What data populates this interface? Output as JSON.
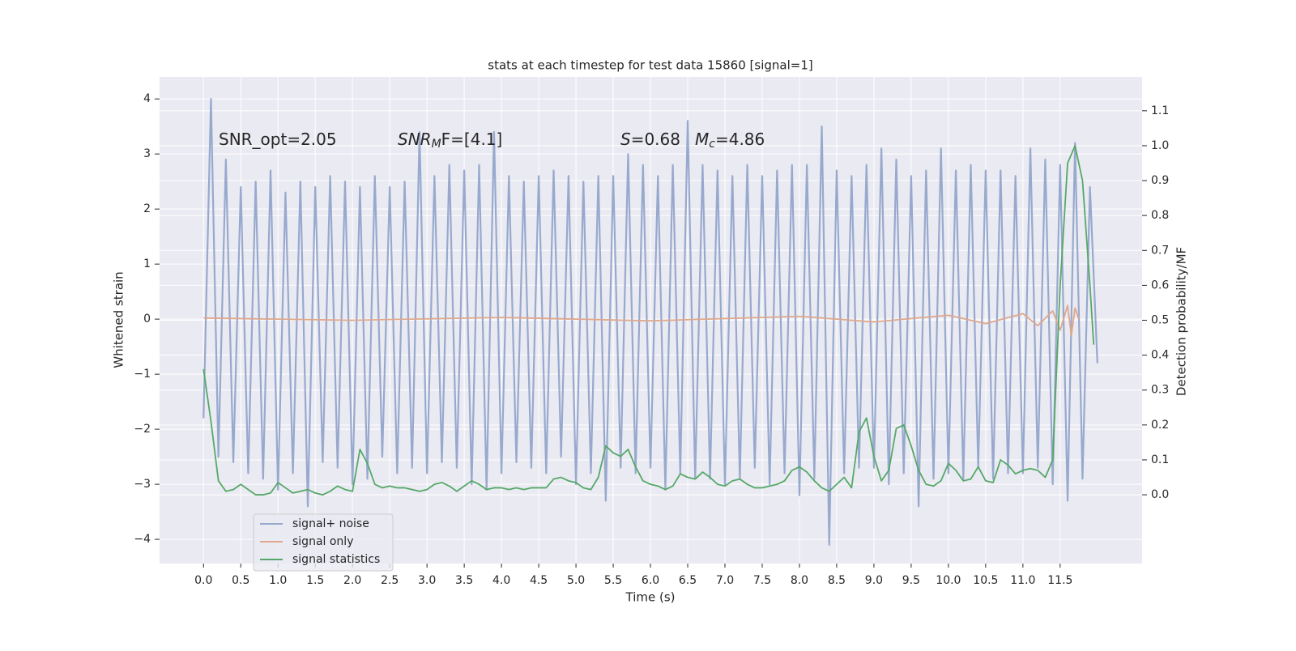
{
  "chart_data": {
    "type": "line",
    "title": "stats at each timestep for test data 15860 [signal=1]",
    "xlabel": "Time (s)",
    "ylabel": "Whitened strain",
    "y2label": "Detection probability/MF",
    "annotations": [
      [
        {
          "text": "SNR_opt=2.05"
        }
      ],
      [
        {
          "text": "SNR",
          "italic": true
        },
        {
          "text": "M",
          "italic": true,
          "sub": true
        },
        {
          "text": "F=[4.1]"
        }
      ],
      [
        {
          "text": "S",
          "italic": true
        },
        {
          "text": "=0.68"
        }
      ],
      [
        {
          "text": "M",
          "italic": true
        },
        {
          "text": "c",
          "italic": true,
          "sub": true
        },
        {
          "text": "=4.86"
        }
      ]
    ],
    "xlim": [
      -0.59,
      12.6
    ],
    "ylim": [
      -4.44,
      4.4
    ],
    "y2lim": [
      -0.197,
      1.197
    ],
    "xticks": [
      {
        "value": 0,
        "label": "0.0"
      },
      {
        "value": 0.5,
        "label": "0.5"
      },
      {
        "value": 1,
        "label": "1.0"
      },
      {
        "value": 1.5,
        "label": "1.5"
      },
      {
        "value": 2,
        "label": "2.0"
      },
      {
        "value": 2.5,
        "label": "2.5"
      },
      {
        "value": 3,
        "label": "3.0"
      },
      {
        "value": 3.5,
        "label": "3.5"
      },
      {
        "value": 4,
        "label": "4.0"
      },
      {
        "value": 4.5,
        "label": "4.5"
      },
      {
        "value": 5,
        "label": "5.0"
      },
      {
        "value": 5.5,
        "label": "5.5"
      },
      {
        "value": 6,
        "label": "6.0"
      },
      {
        "value": 6.5,
        "label": "6.5"
      },
      {
        "value": 7,
        "label": "7.0"
      },
      {
        "value": 7.5,
        "label": "7.5"
      },
      {
        "value": 8,
        "label": "8.0"
      },
      {
        "value": 8.5,
        "label": "8.5"
      },
      {
        "value": 9,
        "label": "9.0"
      },
      {
        "value": 9.5,
        "label": "9.5"
      },
      {
        "value": 10,
        "label": "10.0"
      },
      {
        "value": 10.5,
        "label": "10.5"
      },
      {
        "value": 11,
        "label": "11.0"
      },
      {
        "value": 11.5,
        "label": "11.5"
      }
    ],
    "yticks": [
      {
        "value": -4,
        "label": "−4"
      },
      {
        "value": -3,
        "label": "−3"
      },
      {
        "value": -2,
        "label": "−2"
      },
      {
        "value": -1,
        "label": "−1"
      },
      0,
      1,
      2,
      3,
      4
    ],
    "y2ticks": [
      {
        "value": 0,
        "label": "0.0"
      },
      {
        "value": 0.1,
        "label": "0.1"
      },
      {
        "value": 0.2,
        "label": "0.2"
      },
      {
        "value": 0.3,
        "label": "0.3"
      },
      {
        "value": 0.4,
        "label": "0.4"
      },
      {
        "value": 0.5,
        "label": "0.5"
      },
      {
        "value": 0.6,
        "label": "0.6"
      },
      {
        "value": 0.7,
        "label": "0.7"
      },
      {
        "value": 0.8,
        "label": "0.8"
      },
      {
        "value": 0.9,
        "label": "0.9"
      },
      {
        "value": 1,
        "label": "1.0"
      },
      {
        "value": 1.1,
        "label": "1.1"
      }
    ],
    "grid": true,
    "legend": "lower left",
    "series": [
      {
        "name": "signal+ noise",
        "color": "#98a9ce",
        "x": [
          0,
          0.1,
          0.2,
          0.3,
          0.4,
          0.5,
          0.6,
          0.7,
          0.8,
          0.9,
          1,
          1.1,
          1.2,
          1.3,
          1.4,
          1.5,
          1.6,
          1.7,
          1.8,
          1.9,
          2,
          2.1,
          2.2,
          2.3,
          2.4,
          2.5,
          2.6,
          2.7,
          2.8,
          2.9,
          3,
          3.1,
          3.2,
          3.3,
          3.4,
          3.5,
          3.6,
          3.7,
          3.8,
          3.9,
          4,
          4.1,
          4.2,
          4.3,
          4.4,
          4.5,
          4.6,
          4.7,
          4.8,
          4.9,
          5,
          5.1,
          5.2,
          5.3,
          5.4,
          5.5,
          5.6,
          5.7,
          5.8,
          5.9,
          6,
          6.1,
          6.2,
          6.3,
          6.4,
          6.5,
          6.6,
          6.7,
          6.8,
          6.9,
          7,
          7.1,
          7.2,
          7.3,
          7.4,
          7.5,
          7.6,
          7.7,
          7.8,
          7.9,
          8,
          8.1,
          8.2,
          8.3,
          8.4,
          8.5,
          8.6,
          8.7,
          8.8,
          8.9,
          9,
          9.1,
          9.2,
          9.3,
          9.4,
          9.5,
          9.6,
          9.7,
          9.8,
          9.9,
          10,
          10.1,
          10.2,
          10.3,
          10.4,
          10.5,
          10.6,
          10.7,
          10.8,
          10.9,
          11,
          11.1,
          11.2,
          11.3,
          11.4,
          11.5,
          11.6,
          11.7,
          11.8,
          11.9,
          12
        ],
        "values": [
          -1.8,
          4.0,
          -2.5,
          2.9,
          -2.6,
          2.4,
          -2.8,
          2.5,
          -2.9,
          2.7,
          -3.1,
          2.3,
          -2.8,
          2.5,
          -3.4,
          2.4,
          -2.6,
          2.6,
          -2.7,
          2.5,
          -3.0,
          2.4,
          -2.9,
          2.6,
          -2.5,
          2.4,
          -2.8,
          2.5,
          -2.7,
          3.4,
          -2.8,
          2.6,
          -2.6,
          2.8,
          -2.7,
          2.7,
          -3.0,
          2.8,
          -3.1,
          3.4,
          -2.8,
          2.6,
          -2.6,
          2.5,
          -2.7,
          2.6,
          -2.8,
          2.7,
          -2.5,
          2.6,
          -3.0,
          2.5,
          -2.8,
          2.6,
          -3.3,
          2.6,
          -2.7,
          3.0,
          -2.8,
          2.8,
          -2.7,
          2.6,
          -3.1,
          2.8,
          -2.8,
          3.6,
          -2.9,
          2.8,
          -2.9,
          2.7,
          -3.0,
          2.6,
          -2.9,
          2.8,
          -2.7,
          2.6,
          -3.0,
          2.7,
          -2.8,
          2.8,
          -3.2,
          2.8,
          -2.9,
          3.5,
          -4.1,
          2.7,
          -2.8,
          2.6,
          -2.7,
          2.8,
          -2.7,
          3.1,
          -3.0,
          2.9,
          -2.8,
          2.6,
          -3.4,
          2.7,
          -2.9,
          3.1,
          -2.8,
          2.7,
          -2.9,
          2.8,
          -2.7,
          2.7,
          -2.9,
          2.7,
          -2.8,
          2.6,
          -2.8,
          3.1,
          -2.7,
          2.9,
          -3.0,
          2.8,
          -3.3,
          3.2,
          -2.9,
          2.4,
          -0.8
        ]
      },
      {
        "name": "signal only",
        "color": "#dfa78c",
        "x": [
          0,
          2,
          4,
          6,
          8,
          9,
          10,
          10.5,
          11,
          11.2,
          11.4,
          11.5,
          11.6,
          11.65,
          11.7,
          11.75
        ],
        "values": [
          0.02,
          -0.02,
          0.03,
          -0.03,
          0.05,
          -0.05,
          0.07,
          -0.08,
          0.1,
          -0.12,
          0.15,
          -0.2,
          0.25,
          -0.3,
          0.2,
          0.0
        ]
      },
      {
        "name": "signal statistics",
        "color": "#55a868",
        "axis": "y2",
        "x": [
          0,
          0.1,
          0.2,
          0.3,
          0.4,
          0.5,
          0.6,
          0.7,
          0.8,
          0.9,
          1,
          1.1,
          1.2,
          1.3,
          1.4,
          1.5,
          1.6,
          1.7,
          1.8,
          1.9,
          2,
          2.1,
          2.2,
          2.3,
          2.4,
          2.5,
          2.6,
          2.7,
          2.8,
          2.9,
          3,
          3.1,
          3.2,
          3.3,
          3.4,
          3.5,
          3.6,
          3.7,
          3.8,
          3.9,
          4,
          4.1,
          4.2,
          4.3,
          4.4,
          4.5,
          4.6,
          4.7,
          4.8,
          4.9,
          5,
          5.1,
          5.2,
          5.3,
          5.4,
          5.5,
          5.6,
          5.7,
          5.8,
          5.9,
          6,
          6.1,
          6.2,
          6.3,
          6.4,
          6.5,
          6.6,
          6.7,
          6.8,
          6.9,
          7,
          7.1,
          7.2,
          7.3,
          7.4,
          7.5,
          7.6,
          7.7,
          7.8,
          7.9,
          8,
          8.1,
          8.2,
          8.3,
          8.4,
          8.5,
          8.6,
          8.7,
          8.8,
          8.9,
          9,
          9.1,
          9.2,
          9.3,
          9.4,
          9.5,
          9.6,
          9.7,
          9.8,
          9.9,
          10,
          10.1,
          10.2,
          10.3,
          10.4,
          10.5,
          10.6,
          10.7,
          10.8,
          10.9,
          11,
          11.1,
          11.2,
          11.3,
          11.4,
          11.5,
          11.6,
          11.7,
          11.8,
          11.9,
          11.95
        ],
        "values": [
          0.36,
          0.21,
          0.04,
          0.01,
          0.015,
          0.03,
          0.015,
          0.0,
          0.0,
          0.005,
          0.035,
          0.02,
          0.005,
          0.01,
          0.015,
          0.005,
          0.0,
          0.01,
          0.025,
          0.015,
          0.01,
          0.13,
          0.09,
          0.03,
          0.02,
          0.025,
          0.02,
          0.02,
          0.015,
          0.01,
          0.015,
          0.03,
          0.035,
          0.025,
          0.01,
          0.025,
          0.04,
          0.03,
          0.015,
          0.02,
          0.02,
          0.015,
          0.02,
          0.015,
          0.02,
          0.02,
          0.02,
          0.045,
          0.05,
          0.04,
          0.035,
          0.02,
          0.015,
          0.05,
          0.14,
          0.12,
          0.11,
          0.13,
          0.08,
          0.04,
          0.03,
          0.025,
          0.015,
          0.025,
          0.06,
          0.05,
          0.045,
          0.065,
          0.05,
          0.03,
          0.025,
          0.04,
          0.045,
          0.03,
          0.02,
          0.02,
          0.025,
          0.03,
          0.04,
          0.07,
          0.08,
          0.065,
          0.04,
          0.02,
          0.01,
          0.03,
          0.05,
          0.02,
          0.18,
          0.22,
          0.11,
          0.04,
          0.07,
          0.19,
          0.2,
          0.14,
          0.07,
          0.03,
          0.025,
          0.04,
          0.09,
          0.07,
          0.04,
          0.045,
          0.08,
          0.04,
          0.035,
          0.1,
          0.085,
          0.06,
          0.07,
          0.075,
          0.07,
          0.05,
          0.1,
          0.6,
          0.95,
          1.0,
          0.9,
          0.6,
          0.43
        ]
      }
    ]
  }
}
